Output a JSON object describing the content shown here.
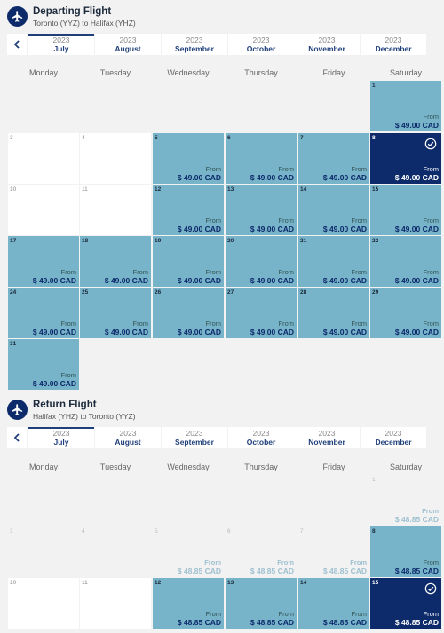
{
  "weekdays": [
    "Monday",
    "Tuesday",
    "Wednesday",
    "Thursday",
    "Friday",
    "Saturday"
  ],
  "icons": {
    "section": "airplane-icon",
    "prev": "chevron-left-icon",
    "selected": "check-circle-icon"
  },
  "colors": {
    "available": "#77b3c9",
    "selected": "#0d2b6b",
    "unavailable": "#ffffff",
    "accent": "#1f3f7a"
  },
  "departing": {
    "title": "Departing Flight",
    "route": "Toronto (YYZ) to Halifax (YHZ)",
    "months": [
      {
        "year": "2023",
        "month": "July",
        "active": true
      },
      {
        "year": "2023",
        "month": "August"
      },
      {
        "year": "2023",
        "month": "September"
      },
      {
        "year": "2023",
        "month": "October"
      },
      {
        "year": "2023",
        "month": "November"
      },
      {
        "year": "2023",
        "month": "December"
      }
    ],
    "days": [
      {
        "d": "1",
        "s": "avail",
        "from": "From",
        "price": "$ 49.00 CAD"
      },
      {
        "d": "3",
        "s": "plain"
      },
      {
        "d": "4",
        "s": "plain"
      },
      {
        "d": "5",
        "s": "avail",
        "from": "From",
        "price": "$ 49.00 CAD"
      },
      {
        "d": "6",
        "s": "avail",
        "from": "From",
        "price": "$ 49.00 CAD"
      },
      {
        "d": "7",
        "s": "avail",
        "from": "From",
        "price": "$ 49.00 CAD"
      },
      {
        "d": "8",
        "s": "sel",
        "from": "From",
        "price": "$ 49.00 CAD"
      },
      {
        "d": "10",
        "s": "plain"
      },
      {
        "d": "11",
        "s": "plain"
      },
      {
        "d": "12",
        "s": "avail",
        "from": "From",
        "price": "$ 49.00 CAD"
      },
      {
        "d": "13",
        "s": "avail",
        "from": "From",
        "price": "$ 49.00 CAD"
      },
      {
        "d": "14",
        "s": "avail",
        "from": "From",
        "price": "$ 49.00 CAD"
      },
      {
        "d": "15",
        "s": "avail",
        "from": "From",
        "price": "$ 49.00 CAD"
      },
      {
        "d": "17",
        "s": "avail",
        "from": "From",
        "price": "$ 49.00 CAD"
      },
      {
        "d": "18",
        "s": "avail",
        "from": "From",
        "price": "$ 49.00 CAD"
      },
      {
        "d": "19",
        "s": "avail",
        "from": "From",
        "price": "$ 49.00 CAD"
      },
      {
        "d": "20",
        "s": "avail",
        "from": "From",
        "price": "$ 49.00 CAD"
      },
      {
        "d": "21",
        "s": "avail",
        "from": "From",
        "price": "$ 49.00 CAD"
      },
      {
        "d": "22",
        "s": "avail",
        "from": "From",
        "price": "$ 49.00 CAD"
      },
      {
        "d": "24",
        "s": "avail",
        "from": "From",
        "price": "$ 49.00 CAD"
      },
      {
        "d": "25",
        "s": "avail",
        "from": "From",
        "price": "$ 49.00 CAD"
      },
      {
        "d": "26",
        "s": "avail",
        "from": "From",
        "price": "$ 49.00 CAD"
      },
      {
        "d": "27",
        "s": "avail",
        "from": "From",
        "price": "$ 49.00 CAD"
      },
      {
        "d": "28",
        "s": "avail",
        "from": "From",
        "price": "$ 49.00 CAD"
      },
      {
        "d": "29",
        "s": "avail",
        "from": "From",
        "price": "$ 49.00 CAD"
      },
      {
        "d": "31",
        "s": "avail",
        "from": "From",
        "price": "$ 49.00 CAD"
      }
    ]
  },
  "returning": {
    "title": "Return Flight",
    "route": "Halifax (YHZ) to Toronto (YYZ)",
    "months": [
      {
        "year": "2023",
        "month": "July",
        "active": true
      },
      {
        "year": "2023",
        "month": "August"
      },
      {
        "year": "2023",
        "month": "September"
      },
      {
        "year": "2023",
        "month": "October"
      },
      {
        "year": "2023",
        "month": "November"
      },
      {
        "year": "2023",
        "month": "December"
      }
    ],
    "days": [
      {
        "d": "1",
        "s": "none",
        "faded": true,
        "from": "From",
        "price": "$ 48.85 CAD"
      },
      {
        "d": "3",
        "s": "none",
        "faded": true
      },
      {
        "d": "4",
        "s": "none",
        "faded": true
      },
      {
        "d": "5",
        "s": "none",
        "faded": true,
        "from": "From",
        "price": "$ 48.85 CAD"
      },
      {
        "d": "6",
        "s": "none",
        "faded": true,
        "from": "From",
        "price": "$ 48.85 CAD"
      },
      {
        "d": "7",
        "s": "none",
        "faded": true,
        "from": "From",
        "price": "$ 48.85 CAD"
      },
      {
        "d": "8",
        "s": "avail",
        "from": "From",
        "price": "$ 48.85 CAD"
      },
      {
        "d": "10",
        "s": "plain"
      },
      {
        "d": "11",
        "s": "plain"
      },
      {
        "d": "12",
        "s": "avail",
        "from": "From",
        "price": "$ 48.85 CAD"
      },
      {
        "d": "13",
        "s": "avail",
        "from": "From",
        "price": "$ 48.85 CAD"
      },
      {
        "d": "14",
        "s": "avail",
        "from": "From",
        "price": "$ 48.85 CAD"
      },
      {
        "d": "15",
        "s": "sel",
        "from": "From",
        "price": "$ 48.85 CAD"
      }
    ]
  }
}
